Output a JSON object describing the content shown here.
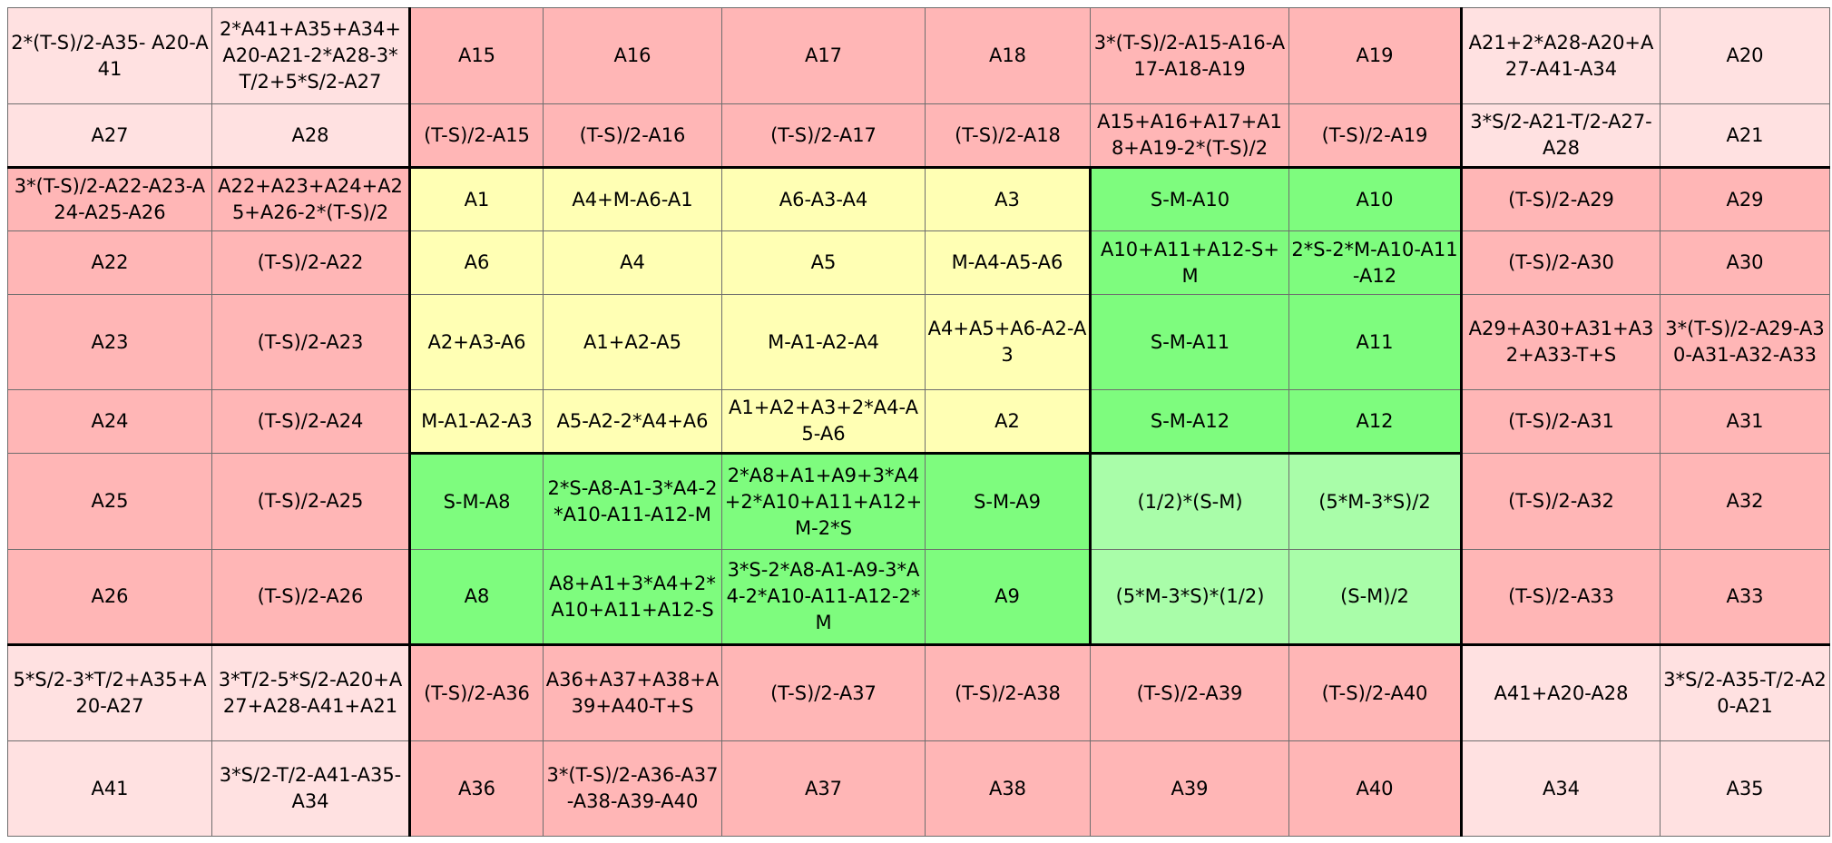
{
  "rows": [
    [
      "2*(T-S)/2-A35- A20-A41",
      "2*A41+A35+A34+A20-A21-2*A28-3*T/2+5*S/2-A27",
      "A15",
      "A16",
      "A17",
      "A18",
      "3*(T-S)/2-A15-A16-A17-A18-A19",
      "A19",
      "A21+2*A28-A20+A27-A41-A34",
      "A20"
    ],
    [
      "A27",
      "A28",
      "(T-S)/2-A15",
      "(T-S)/2-A16",
      "(T-S)/2-A17",
      "(T-S)/2-A18",
      "A15+A16+A17+A18+A19-2*(T-S)/2",
      "(T-S)/2-A19",
      "3*S/2-A21-T/2-A27-A28",
      "A21"
    ],
    [
      "3*(T-S)/2-A22-A23-A24-A25-A26",
      "A22+A23+A24+A25+A26-2*(T-S)/2",
      "A1",
      "A4+M-A6-A1",
      "A6-A3-A4",
      "A3",
      "S-M-A10",
      "A10",
      "(T-S)/2-A29",
      "A29"
    ],
    [
      "A22",
      "(T-S)/2-A22",
      "A6",
      "A4",
      "A5",
      "M-A4-A5-A6",
      "A10+A11+A12-S+M",
      "2*S-2*M-A10-A11-A12",
      "(T-S)/2-A30",
      "A30"
    ],
    [
      "A23",
      "(T-S)/2-A23",
      "A2+A3-A6",
      "A1+A2-A5",
      "M-A1-A2-A4",
      "A4+A5+A6-A2-A3",
      "S-M-A11",
      "A11",
      "A29+A30+A31+A32+A33-T+S",
      "3*(T-S)/2-A29-A30-A31-A32-A33"
    ],
    [
      "A24",
      "(T-S)/2-A24",
      "M-A1-A2-A3",
      "A5-A2-2*A4+A6",
      "A1+A2+A3+2*A4-A5-A6",
      "A2",
      "S-M-A12",
      "A12",
      "(T-S)/2-A31",
      "A31"
    ],
    [
      "A25",
      "(T-S)/2-A25",
      "S-M-A8",
      "2*S-A8-A1-3*A4-2*A10-A11-A12-M",
      "2*A8+A1+A9+3*A4+2*A10+A11+A12+M-2*S",
      "S-M-A9",
      "(1/2)*(S-M)",
      "(5*M-3*S)/2",
      "(T-S)/2-A32",
      "A32"
    ],
    [
      "A26",
      "(T-S)/2-A26",
      "A8",
      "A8+A1+3*A4+2*A10+A11+A12-S",
      "3*S-2*A8-A1-A9-3*A4-2*A10-A11-A12-2*M",
      "A9",
      "(5*M-3*S)*(1/2)",
      "(S-M)/2",
      "(T-S)/2-A33",
      "A33"
    ],
    [
      "5*S/2-3*T/2+A35+A20-A27",
      "3*T/2-5*S/2-A20+A27+A28-A41+A21",
      "(T-S)/2-A36",
      "A36+A37+A38+A39+A40-T+S",
      "(T-S)/2-A37",
      "(T-S)/2-A38",
      "(T-S)/2-A39",
      "(T-S)/2-A40",
      "A41+A20-A28",
      "3*S/2-A35-T/2-A20-A21"
    ],
    [
      "A41",
      "3*S/2-T/2-A41-A35-A34",
      "A36",
      "3*(T-S)/2-A36-A37-A38-A39-A40",
      "A37",
      "A38",
      "A39",
      "A40",
      "A34",
      "A35"
    ]
  ]
}
